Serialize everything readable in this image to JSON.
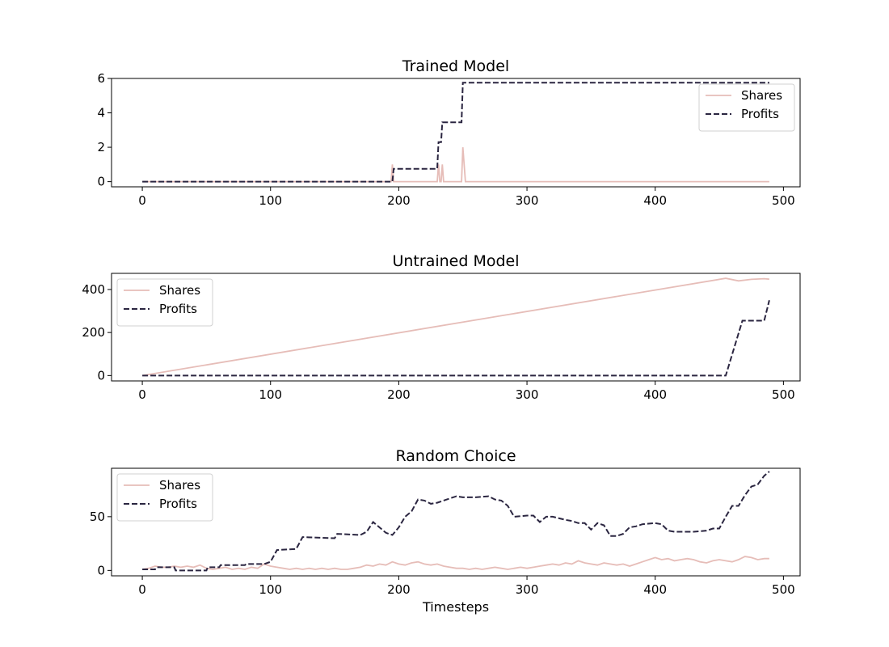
{
  "xlabel": "Timesteps",
  "colors": {
    "shares": "#e6bdb8",
    "profits": "#2b2641"
  },
  "chart_data": [
    {
      "type": "line",
      "title": "Trained Model",
      "xlabel": "",
      "ylabel": "",
      "xlim": [
        -24,
        513
      ],
      "ylim": [
        -0.3,
        6.0
      ],
      "xticks": [
        0,
        100,
        200,
        300,
        400,
        500
      ],
      "yticks": [
        0,
        2,
        4,
        6
      ],
      "legend": "top-right",
      "series": [
        {
          "name": "Shares",
          "style": "solid",
          "x": [
            0,
            193,
            194,
            195,
            196,
            230,
            231,
            232,
            233,
            234,
            235,
            249,
            250,
            252,
            489
          ],
          "y": [
            0,
            0,
            0,
            1,
            0,
            0,
            1,
            0,
            0,
            1,
            0,
            0,
            2,
            0,
            0
          ]
        },
        {
          "name": "Profits",
          "style": "dashed",
          "x": [
            0,
            195,
            196,
            230,
            231,
            233,
            234,
            235,
            249,
            250,
            251,
            489
          ],
          "y": [
            0,
            0,
            0.75,
            0.75,
            2.3,
            2.3,
            3.45,
            3.45,
            3.45,
            5.75,
            5.75,
            5.75
          ]
        }
      ]
    },
    {
      "type": "line",
      "title": "Untrained Model",
      "xlabel": "",
      "ylabel": "",
      "xlim": [
        -24,
        513
      ],
      "ylim": [
        -25,
        475
      ],
      "xticks": [
        0,
        100,
        200,
        300,
        400,
        500
      ],
      "yticks": [
        0,
        200,
        400
      ],
      "legend": "top-left",
      "series": [
        {
          "name": "Shares",
          "style": "solid",
          "x": [
            0,
            455,
            465,
            475,
            485,
            489
          ],
          "y": [
            0,
            452,
            440,
            447,
            450,
            448
          ]
        },
        {
          "name": "Profits",
          "style": "dashed",
          "x": [
            0,
            455,
            468,
            485,
            489
          ],
          "y": [
            0,
            0,
            255,
            255,
            350
          ]
        }
      ]
    },
    {
      "type": "line",
      "title": "Random Choice",
      "xlabel": "Timesteps",
      "ylabel": "",
      "xlim": [
        -24,
        513
      ],
      "ylim": [
        -5,
        95
      ],
      "xticks": [
        0,
        100,
        200,
        300,
        400,
        500
      ],
      "yticks": [
        0,
        50
      ],
      "legend": "top-left",
      "series": [
        {
          "name": "Shares",
          "style": "solid",
          "x": [
            0,
            5,
            10,
            15,
            20,
            25,
            30,
            35,
            40,
            45,
            50,
            55,
            60,
            65,
            70,
            75,
            80,
            85,
            90,
            95,
            100,
            105,
            110,
            115,
            120,
            125,
            130,
            135,
            140,
            145,
            150,
            155,
            160,
            165,
            170,
            175,
            180,
            185,
            190,
            195,
            200,
            205,
            210,
            215,
            220,
            225,
            230,
            235,
            240,
            245,
            250,
            255,
            260,
            265,
            270,
            275,
            280,
            285,
            290,
            295,
            300,
            305,
            310,
            315,
            320,
            325,
            330,
            335,
            340,
            345,
            350,
            355,
            360,
            365,
            370,
            375,
            380,
            385,
            390,
            395,
            400,
            405,
            410,
            415,
            420,
            425,
            430,
            435,
            440,
            445,
            450,
            455,
            460,
            465,
            470,
            475,
            480,
            485,
            489
          ],
          "y": [
            1,
            2,
            4,
            3,
            3,
            4,
            3,
            4,
            3,
            5,
            2,
            1,
            2,
            3,
            1,
            2,
            1,
            3,
            2,
            6,
            4,
            3,
            2,
            1,
            2,
            1,
            2,
            1,
            2,
            1,
            2,
            1,
            1,
            2,
            3,
            5,
            4,
            6,
            5,
            8,
            6,
            5,
            7,
            8,
            6,
            5,
            6,
            4,
            3,
            2,
            2,
            1,
            2,
            1,
            2,
            3,
            2,
            1,
            2,
            3,
            2,
            3,
            4,
            5,
            6,
            5,
            7,
            6,
            9,
            7,
            6,
            5,
            7,
            6,
            5,
            6,
            4,
            6,
            8,
            10,
            12,
            10,
            11,
            9,
            10,
            11,
            10,
            8,
            7,
            9,
            10,
            9,
            8,
            10,
            13,
            12,
            10,
            11,
            11
          ]
        },
        {
          "name": "Profits",
          "style": "dashed",
          "x": [
            0,
            10,
            11,
            25,
            26,
            50,
            51,
            60,
            61,
            80,
            81,
            95,
            100,
            105,
            120,
            125,
            150,
            152,
            170,
            175,
            180,
            185,
            190,
            195,
            200,
            205,
            210,
            215,
            220,
            225,
            230,
            240,
            245,
            250,
            255,
            260,
            270,
            275,
            280,
            285,
            290,
            300,
            305,
            310,
            315,
            320,
            330,
            335,
            340,
            345,
            350,
            355,
            360,
            365,
            370,
            375,
            380,
            385,
            390,
            400,
            405,
            410,
            415,
            420,
            430,
            440,
            445,
            450,
            455,
            460,
            465,
            470,
            475,
            480,
            485,
            489
          ],
          "y": [
            1,
            1,
            3,
            3,
            0,
            0,
            3,
            3,
            5,
            5,
            6,
            6,
            8,
            19,
            20,
            31,
            30,
            34,
            33,
            36,
            45,
            40,
            35,
            33,
            40,
            50,
            55,
            66,
            65,
            62,
            63,
            67,
            69,
            68,
            68,
            68,
            69,
            66,
            65,
            60,
            50,
            51,
            51,
            45,
            50,
            50,
            47,
            46,
            44,
            44,
            38,
            44,
            42,
            32,
            32,
            34,
            40,
            41,
            43,
            44,
            43,
            37,
            36,
            36,
            36,
            37,
            39,
            39,
            50,
            60,
            60,
            70,
            78,
            80,
            88,
            92
          ]
        }
      ]
    }
  ]
}
